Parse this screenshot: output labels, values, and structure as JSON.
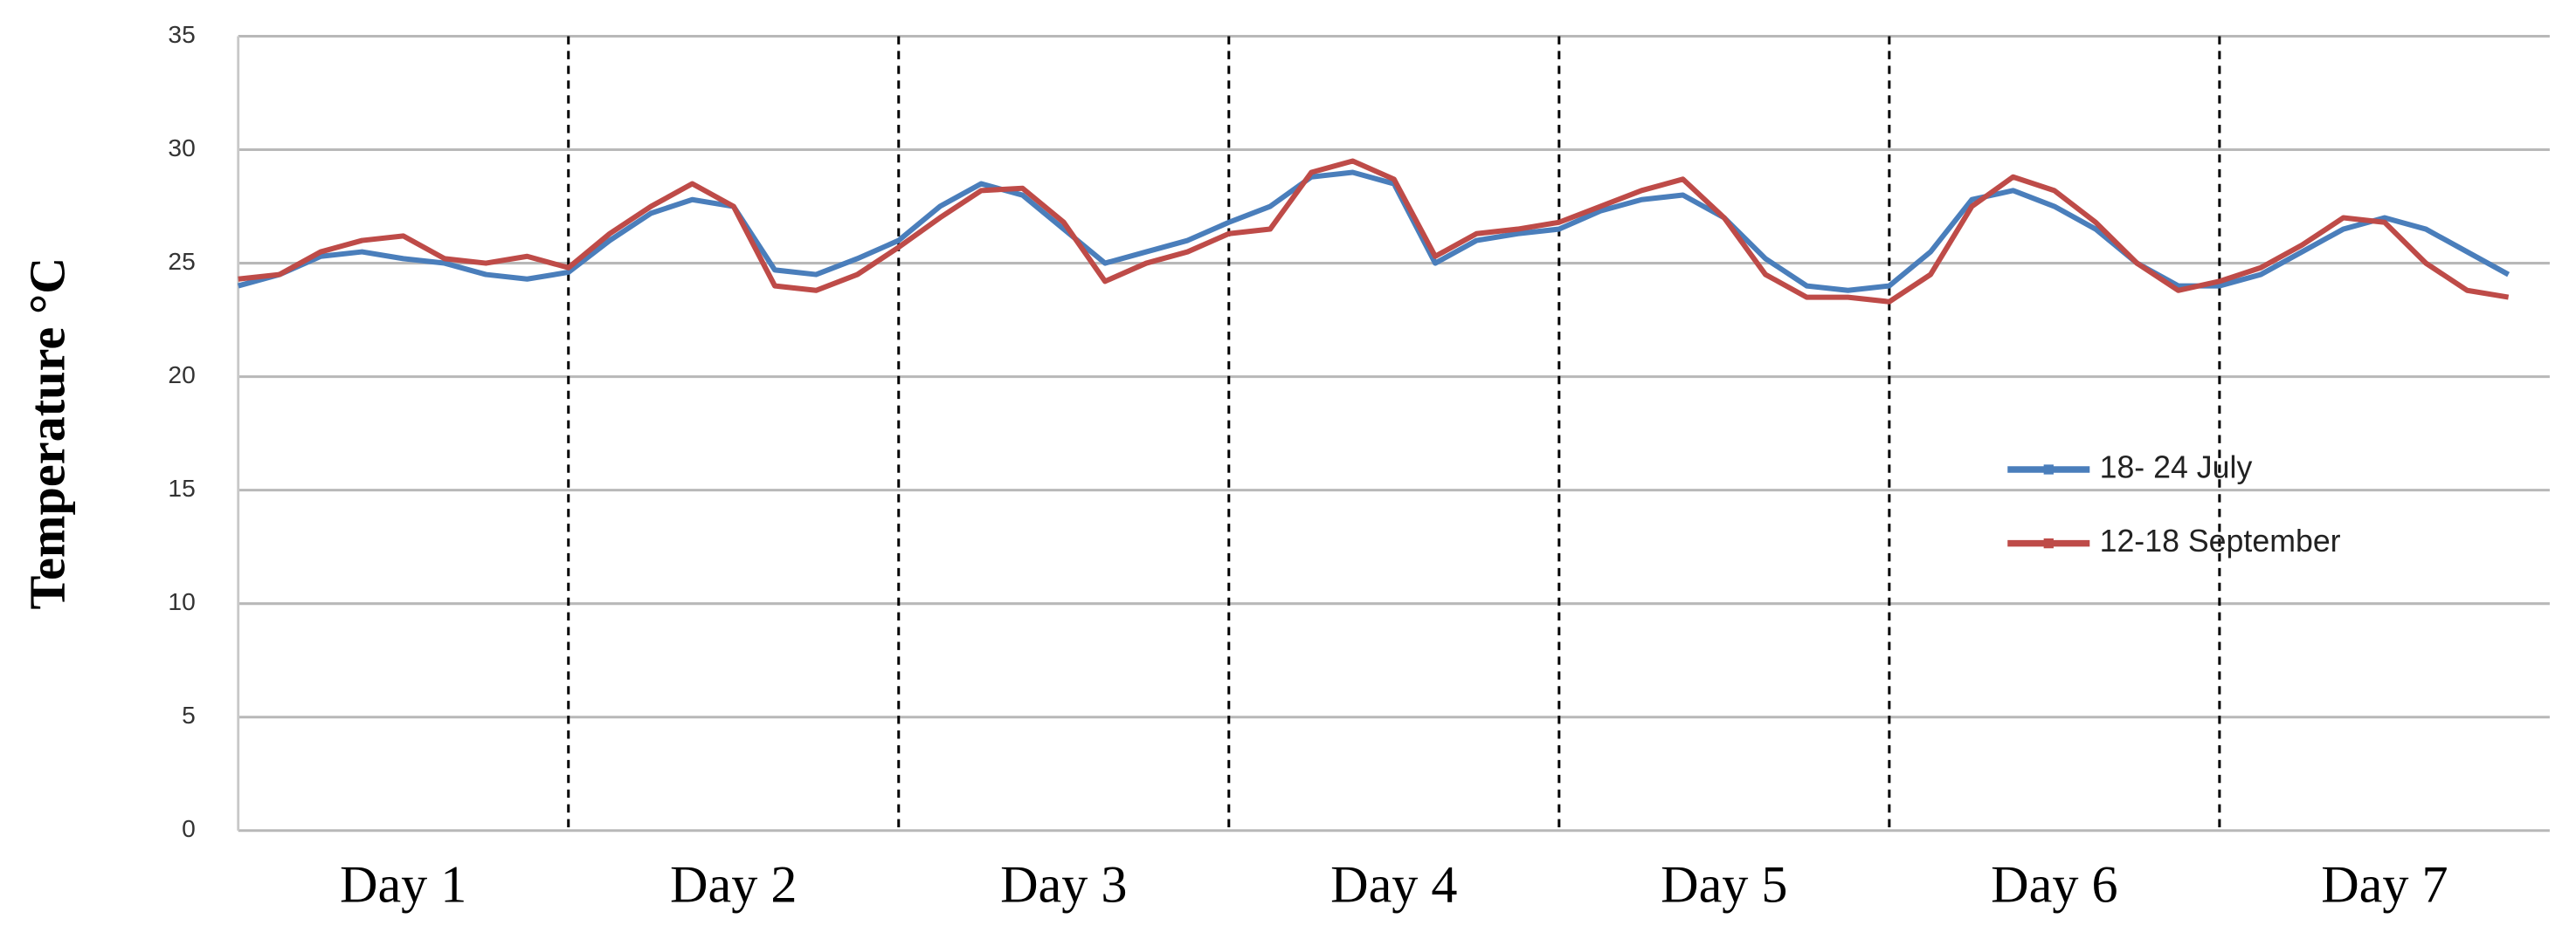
{
  "chart_data": {
    "type": "line",
    "ylabel": "Temperature °C",
    "categories": [
      "Day 1",
      "Day 2",
      "Day 3",
      "Day 4",
      "Day 5",
      "Day 6",
      "Day 7"
    ],
    "series": [
      {
        "name": "18- 24 July",
        "color": "#4a7ebb",
        "values": [
          [
            24,
            24.5,
            25.3,
            25.5,
            25.2,
            25,
            24.5,
            24.3
          ],
          [
            24.6,
            26,
            27.2,
            27.8,
            27.5,
            24.7,
            24.5,
            25.2
          ],
          [
            26,
            27.5,
            28.5,
            28,
            26.5,
            25,
            25.5,
            26
          ],
          [
            26.8,
            27.5,
            28.8,
            29,
            28.5,
            25,
            26,
            26.3
          ],
          [
            26.5,
            27.3,
            27.8,
            28,
            27,
            25.2,
            24,
            23.8
          ],
          [
            24,
            25.5,
            27.8,
            28.2,
            27.5,
            26.5,
            25,
            24
          ],
          [
            24,
            24.5,
            25.5,
            26.5,
            27,
            26.5,
            25.5,
            24.5
          ]
        ]
      },
      {
        "name": "12-18 September",
        "color": "#be4b48",
        "values": [
          [
            24.3,
            24.5,
            25.5,
            26,
            26.2,
            25.2,
            25,
            25.3
          ],
          [
            24.8,
            26.3,
            27.5,
            28.5,
            27.5,
            24,
            23.8,
            24.5
          ],
          [
            25.7,
            27,
            28.2,
            28.3,
            26.8,
            24.2,
            25,
            25.5
          ],
          [
            26.3,
            26.5,
            29,
            29.5,
            28.7,
            25.3,
            26.3,
            26.5
          ],
          [
            26.8,
            27.5,
            28.2,
            28.7,
            27,
            24.5,
            23.5,
            23.5
          ],
          [
            23.3,
            24.5,
            27.5,
            28.8,
            28.2,
            26.8,
            25,
            23.8
          ],
          [
            24.2,
            24.8,
            25.8,
            27,
            26.8,
            25,
            23.8,
            23.5
          ]
        ]
      }
    ],
    "ylim": [
      0,
      35
    ],
    "yticks": [
      0,
      5,
      10,
      15,
      20,
      25,
      30,
      35
    ],
    "grid": true,
    "legend": "right"
  }
}
